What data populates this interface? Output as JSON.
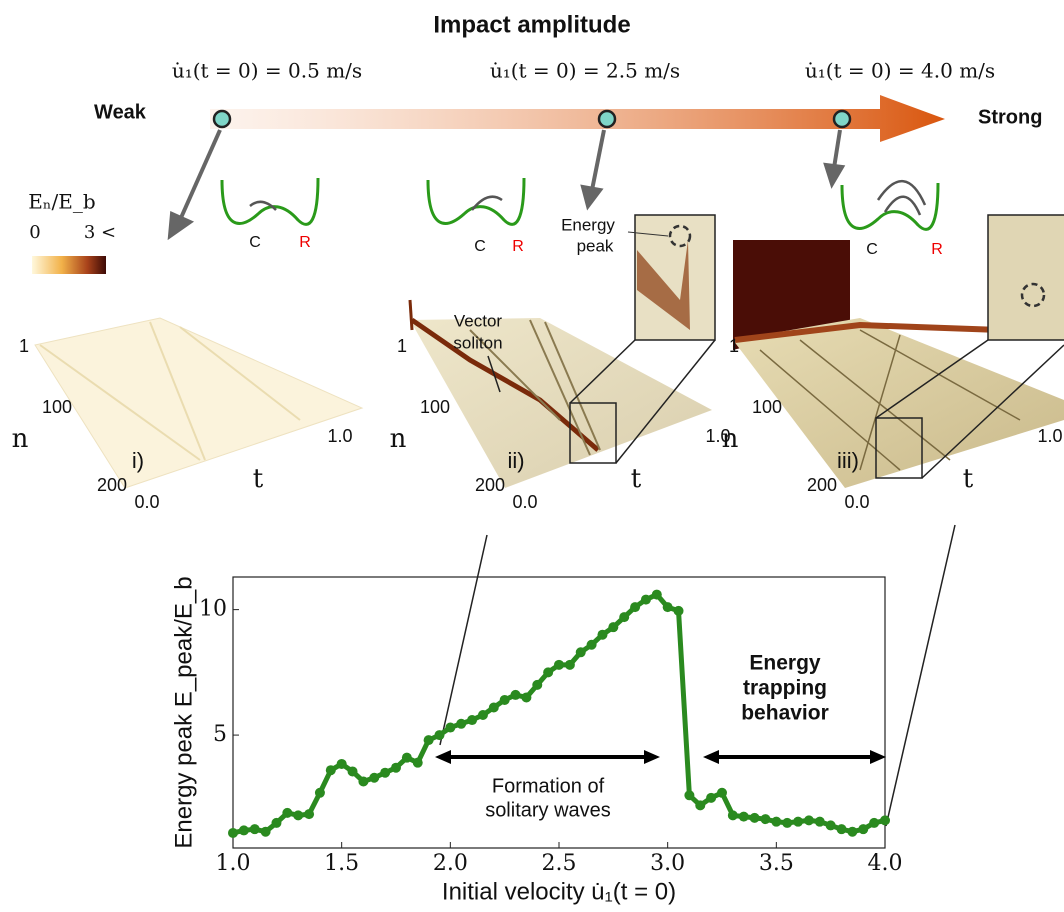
{
  "header": {
    "title": "Impact amplitude",
    "weak": "Weak",
    "strong": "Strong",
    "cases": [
      "u̇₁(t = 0) = 0.5 m/s",
      "u̇₁(t = 0) = 2.5 m/s",
      "u̇₁(t = 0) = 4.0 m/s"
    ]
  },
  "colorbar": {
    "label": "Eₙ/E_b",
    "min": "0",
    "max": "3 <"
  },
  "wells": [
    {
      "left": "C",
      "right": "R"
    },
    {
      "left": "C",
      "right": "R"
    },
    {
      "left": "C",
      "right": "R"
    }
  ],
  "annotations": {
    "energy_peak": [
      "Energy",
      "peak"
    ],
    "vector_soliton": [
      "Vector",
      "soliton"
    ]
  },
  "panels": [
    {
      "label": "i)",
      "n_ticks": [
        "1",
        "100",
        "200"
      ],
      "t_ticks": [
        "0.0",
        "1.0"
      ],
      "n_label": "n",
      "t_label": "t"
    },
    {
      "label": "ii)",
      "n_ticks": [
        "1",
        "100",
        "200"
      ],
      "t_ticks": [
        "0.0",
        "1.0"
      ],
      "n_label": "n",
      "t_label": "t"
    },
    {
      "label": "iii)",
      "n_ticks": [
        "1",
        "100",
        "200"
      ],
      "t_ticks": [
        "0.0",
        "1.0"
      ],
      "n_label": "n",
      "t_label": "t"
    }
  ],
  "chart_data": {
    "type": "line",
    "color": "#2a8a1f",
    "xlabel": "Initial velocity u̇₁(t = 0)",
    "ylabel": "Energy peak E_peak/E_b",
    "x": [
      1.0,
      1.05,
      1.1,
      1.15,
      1.2,
      1.25,
      1.3,
      1.35,
      1.4,
      1.45,
      1.5,
      1.55,
      1.6,
      1.65,
      1.7,
      1.75,
      1.8,
      1.85,
      1.9,
      1.95,
      2.0,
      2.05,
      2.1,
      2.15,
      2.2,
      2.25,
      2.3,
      2.35,
      2.4,
      2.45,
      2.5,
      2.55,
      2.6,
      2.65,
      2.7,
      2.75,
      2.8,
      2.85,
      2.9,
      2.95,
      3.0,
      3.05,
      3.1,
      3.15,
      3.2,
      3.25,
      3.3,
      3.35,
      3.4,
      3.45,
      3.5,
      3.55,
      3.6,
      3.65,
      3.7,
      3.75,
      3.8,
      3.85,
      3.9,
      3.95,
      4.0
    ],
    "values": [
      1.1,
      1.2,
      1.25,
      1.15,
      1.5,
      1.9,
      1.8,
      1.85,
      2.7,
      3.6,
      3.85,
      3.55,
      3.15,
      3.3,
      3.5,
      3.7,
      4.1,
      3.9,
      4.8,
      5.0,
      5.3,
      5.45,
      5.6,
      5.8,
      6.1,
      6.4,
      6.6,
      6.5,
      7.0,
      7.5,
      7.8,
      7.8,
      8.3,
      8.6,
      9.0,
      9.3,
      9.7,
      10.1,
      10.4,
      10.6,
      10.1,
      9.95,
      2.6,
      2.2,
      2.5,
      2.7,
      1.8,
      1.75,
      1.7,
      1.65,
      1.55,
      1.5,
      1.55,
      1.6,
      1.55,
      1.4,
      1.25,
      1.15,
      1.25,
      1.5,
      1.6
    ],
    "xlim": [
      1.0,
      4.0
    ],
    "ylim": [
      0.5,
      11.3
    ],
    "xticks": [
      {
        "value": 1,
        "label": "1.0"
      },
      1.5,
      {
        "value": 2,
        "label": "2.0"
      },
      2.5,
      {
        "value": 3,
        "label": "3.0"
      },
      3.5,
      {
        "value": 4,
        "label": "4.0"
      }
    ],
    "yticks": [
      5,
      10
    ],
    "annotations": [
      {
        "lines": [
          "Formation of",
          "solitary waves"
        ]
      },
      {
        "lines": [
          "Energy",
          "trapping",
          "behavior"
        ]
      }
    ]
  }
}
